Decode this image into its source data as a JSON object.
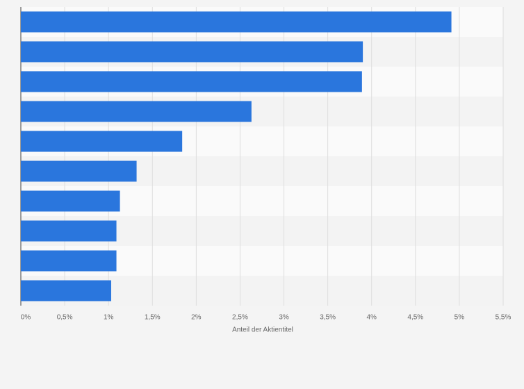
{
  "chart_data": {
    "type": "bar",
    "orientation": "horizontal",
    "x_label": "Anteil der Aktientitel",
    "categories": [
      null,
      null,
      null,
      null,
      null,
      null,
      null,
      null,
      null,
      null
    ],
    "values": [
      4.91,
      3.9,
      3.89,
      2.63,
      1.84,
      1.32,
      1.13,
      1.09,
      1.09,
      1.03
    ],
    "color": "#2a76dd",
    "xlim": [
      0,
      5.5
    ],
    "xticks": [
      {
        "value": 0,
        "label": "0%"
      },
      {
        "value": 0.5,
        "label": "0,5%"
      },
      {
        "value": 1,
        "label": "1%"
      },
      {
        "value": 1.5,
        "label": "1,5%"
      },
      {
        "value": 2,
        "label": "2%"
      },
      {
        "value": 2.5,
        "label": "2,5%"
      },
      {
        "value": 3,
        "label": "3%"
      },
      {
        "value": 3.5,
        "label": "3,5%"
      },
      {
        "value": 4,
        "label": "4%"
      },
      {
        "value": 4.5,
        "label": "4,5%"
      },
      {
        "value": 5,
        "label": "5%"
      },
      {
        "value": 5.5,
        "label": "5,5%"
      }
    ],
    "grid": true
  }
}
